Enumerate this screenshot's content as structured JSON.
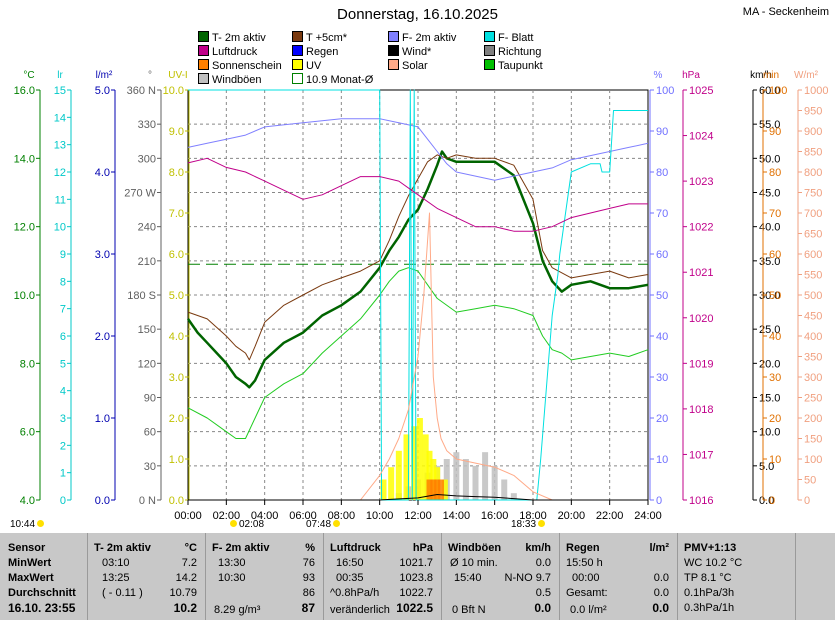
{
  "header": {
    "title": "Donnerstag, 16.10.2025",
    "location": "MA - Seckenheim"
  },
  "legend": [
    {
      "label": "T- 2m aktiv",
      "color": "#006400"
    },
    {
      "label": "T +5cm*",
      "color": "#7a3a10"
    },
    {
      "label": "F- 2m aktiv",
      "color": "#8080ff"
    },
    {
      "label": "F- Blatt",
      "color": "#00e0e0"
    },
    {
      "label": "Luftdruck",
      "color": "#c0008a"
    },
    {
      "label": "Regen",
      "color": "#0000ff"
    },
    {
      "label": "Wind*",
      "color": "#000000"
    },
    {
      "label": "Richtung",
      "color": "#808080"
    },
    {
      "label": "Sonnenschein",
      "color": "#ff8000"
    },
    {
      "label": "UV",
      "color": "#ffff00"
    },
    {
      "label": "Solar",
      "color": "#ffaa88"
    },
    {
      "label": "Taupunkt",
      "color": "#00c000"
    },
    {
      "label": "Windböen",
      "color": "#c0c0c0"
    },
    {
      "label": "10.9 Monat-Ø",
      "color": "#ffffff"
    }
  ],
  "sun": {
    "sunrise_text": "10:44",
    "sunset_text": "18:33",
    "events": [
      "02:08",
      "07:48"
    ]
  },
  "chart_data": {
    "type": "line",
    "x_unit": "hours",
    "x_ticks": [
      "00:00",
      "02:00",
      "04:00",
      "06:00",
      "08:00",
      "10:00",
      "12:00",
      "14:00",
      "16:00",
      "18:00",
      "20:00",
      "22:00",
      "24:00"
    ],
    "xlim": [
      0,
      24
    ],
    "axes": [
      {
        "unit": "°C",
        "color": "#008000",
        "ylim": [
          4,
          16
        ],
        "ticks": [
          "4.0",
          "6.0",
          "8.0",
          "10.0",
          "12.0",
          "14.0",
          "16.0"
        ]
      },
      {
        "unit": "lr",
        "color": "#00c8c8",
        "ylim": [
          0,
          15
        ],
        "ticks": [
          "0",
          "1",
          "2",
          "3",
          "4",
          "5",
          "6",
          "7",
          "8",
          "9",
          "10",
          "11",
          "12",
          "13",
          "14",
          "15"
        ]
      },
      {
        "unit": "l/m²",
        "color": "#0000b0",
        "ylim": [
          0,
          5
        ],
        "ticks": [
          "0.0",
          "1.0",
          "2.0",
          "3.0",
          "4.0",
          "5.0"
        ]
      },
      {
        "unit": "°",
        "color": "#606060",
        "ylim": [
          0,
          360
        ],
        "ticks": [
          "0 N",
          "30",
          "60",
          "90",
          "120",
          "150",
          "180 S",
          "210",
          "240",
          "270 W",
          "300",
          "330",
          "360 N"
        ]
      },
      {
        "unit": "UV-I",
        "color": "#c0c000",
        "ylim": [
          0,
          10
        ],
        "ticks": [
          "0.0",
          "1.0",
          "2.0",
          "3.0",
          "4.0",
          "5.0",
          "6.0",
          "7.0",
          "8.0",
          "9.0",
          "10.0"
        ]
      },
      {
        "unit": "%",
        "color": "#7070ff",
        "ylim": [
          0,
          100
        ],
        "ticks": [
          "0",
          "10",
          "20",
          "30",
          "40",
          "50",
          "60",
          "70",
          "80",
          "90",
          "100"
        ]
      },
      {
        "unit": "hPa",
        "color": "#c0008a",
        "ylim": [
          1016,
          1025
        ],
        "ticks": [
          "1016",
          "1017",
          "1018",
          "1019",
          "1020",
          "1021",
          "1022",
          "1023",
          "1024",
          "1025"
        ]
      },
      {
        "unit": "km/h",
        "color": "#000000",
        "ylim": [
          0,
          60
        ],
        "ticks": [
          "0.0",
          "5.0",
          "10.0",
          "15.0",
          "20.0",
          "25.0",
          "30.0",
          "35.0",
          "40.0",
          "45.0",
          "50.0",
          "55.0",
          "60.0"
        ]
      },
      {
        "unit": "min",
        "color": "#e07000",
        "ylim": [
          0,
          100
        ],
        "ticks": [
          "0",
          "10",
          "20",
          "30",
          "40",
          "50",
          "60",
          "70",
          "80",
          "90",
          "100"
        ]
      },
      {
        "unit": "W/m²",
        "color": "#f0a080",
        "ylim": [
          0,
          1000
        ],
        "ticks": [
          "0",
          "50",
          "100",
          "150",
          "200",
          "250",
          "300",
          "350",
          "400",
          "450",
          "500",
          "550",
          "600",
          "650",
          "700",
          "750",
          "800",
          "850",
          "900",
          "950",
          "1000"
        ]
      }
    ],
    "series": [
      {
        "name": "T- 2m aktiv",
        "axis": "°C",
        "color": "#006400",
        "width": 2.5,
        "x": [
          0,
          0.5,
          1,
          1.5,
          2,
          2.5,
          3,
          3.2,
          3.5,
          4,
          5,
          6,
          7,
          8,
          9,
          10,
          10.5,
          11,
          11.5,
          12,
          12.5,
          13,
          13.25,
          13.5,
          14,
          15,
          16,
          17,
          18,
          18.5,
          19,
          19.5,
          20,
          21,
          22,
          23,
          24
        ],
        "y": [
          9.3,
          8.9,
          8.6,
          8.3,
          8.0,
          7.6,
          7.4,
          7.3,
          7.5,
          8.1,
          8.6,
          8.9,
          9.4,
          9.7,
          10.1,
          10.8,
          11.3,
          11.7,
          12.2,
          12.5,
          13.1,
          13.8,
          14.2,
          14.0,
          13.9,
          13.9,
          13.9,
          13.5,
          12.1,
          11.0,
          10.4,
          10.1,
          10.3,
          10.4,
          10.2,
          10.2,
          10.3
        ]
      },
      {
        "name": "T +5cm*",
        "axis": "°C",
        "color": "#7a3a10",
        "width": 1,
        "x": [
          0,
          1,
          2,
          2.5,
          3,
          3.2,
          3.5,
          4,
          5,
          6,
          7,
          8,
          9,
          10,
          10.5,
          11,
          11.5,
          12,
          12.5,
          13,
          13.5,
          14,
          15,
          16,
          17,
          18,
          18.5,
          19,
          20,
          21,
          22,
          23,
          24
        ],
        "y": [
          9.5,
          9.3,
          8.8,
          8.5,
          8.3,
          8.1,
          8.5,
          9.2,
          9.7,
          10.0,
          10.3,
          10.5,
          10.7,
          11.0,
          11.6,
          12.3,
          12.9,
          13.4,
          13.9,
          14.1,
          14.0,
          14.1,
          14.0,
          14.0,
          13.8,
          12.8,
          11.3,
          10.8,
          10.5,
          10.6,
          10.7,
          10.5,
          10.6
        ]
      },
      {
        "name": "Taupunkt",
        "axis": "°C",
        "color": "#22cc22",
        "width": 1,
        "x": [
          0,
          1,
          2,
          2.5,
          3,
          3.5,
          4,
          5,
          6,
          7,
          8,
          9,
          10,
          10.5,
          11,
          11.5,
          12,
          12.5,
          13,
          14,
          15,
          16,
          17,
          18,
          18.5,
          19,
          19.5,
          20,
          21,
          22,
          23,
          24
        ],
        "y": [
          6.7,
          6.4,
          6.0,
          5.8,
          5.8,
          6.4,
          7.0,
          7.4,
          7.7,
          8.3,
          8.8,
          9.3,
          10.0,
          10.4,
          10.7,
          10.8,
          10.7,
          10.3,
          9.9,
          9.5,
          9.6,
          9.7,
          9.6,
          9.4,
          8.8,
          8.4,
          8.3,
          8.1,
          8.2,
          8.3,
          8.2,
          8.4
        ]
      },
      {
        "name": "F- 2m aktiv",
        "axis": "%",
        "color": "#8080ff",
        "width": 1,
        "x": [
          0,
          1,
          2,
          3,
          4,
          6,
          8,
          10,
          11,
          12,
          12.5,
          13,
          13.5,
          14,
          15,
          16,
          17,
          18,
          19,
          20,
          21,
          22,
          23,
          24
        ],
        "y": [
          86,
          87,
          88,
          89,
          91,
          92,
          93,
          93,
          92,
          91,
          88,
          85,
          82,
          80,
          79,
          78,
          79,
          80,
          81,
          83,
          84,
          85,
          86,
          87
        ]
      },
      {
        "name": "F- Blatt",
        "axis": "%",
        "color": "#00e0e0",
        "width": 1,
        "x": [
          0,
          10,
          10.1,
          10.4,
          11.5,
          11.6,
          11.7,
          11.8,
          11.9,
          12.0,
          18.2,
          18.4,
          19,
          19.3,
          19.4,
          20,
          21,
          21.5,
          21.6,
          22,
          22.2,
          22.3,
          24
        ],
        "y": [
          100,
          100,
          0,
          0,
          0,
          100,
          0,
          100,
          0,
          0,
          0,
          10,
          45,
          55,
          60,
          80,
          82,
          82,
          80,
          80,
          95,
          95,
          95
        ]
      },
      {
        "name": "Luftdruck",
        "axis": "hPa",
        "color": "#c0008a",
        "width": 1,
        "x": [
          0,
          1,
          2,
          3,
          4,
          5,
          6,
          7,
          8,
          9,
          10,
          11,
          12,
          13,
          14,
          15,
          16,
          17,
          18,
          19,
          20,
          21,
          22,
          23,
          24
        ],
        "y": [
          1023.4,
          1023.5,
          1023.3,
          1023.2,
          1023.0,
          1022.8,
          1022.6,
          1022.7,
          1022.9,
          1023.1,
          1023.1,
          1023.0,
          1022.7,
          1022.4,
          1022.2,
          1022.0,
          1022.0,
          1021.9,
          1021.9,
          1022.0,
          1022.2,
          1022.3,
          1022.4,
          1022.5,
          1022.5
        ]
      },
      {
        "name": "Solar",
        "axis": "W/m²",
        "color": "#ffaa88",
        "width": 1,
        "x": [
          0,
          9,
          10,
          10.5,
          11,
          11.5,
          12,
          12.3,
          12.6,
          12.8,
          13,
          13.2,
          13.5,
          14,
          15,
          16,
          17,
          18,
          19,
          24
        ],
        "y": [
          0,
          0,
          60,
          100,
          150,
          220,
          350,
          500,
          700,
          300,
          200,
          150,
          120,
          100,
          90,
          80,
          60,
          20,
          0,
          0
        ]
      },
      {
        "name": "Wind*",
        "axis": "km/h",
        "color": "#000000",
        "width": 1,
        "x": [
          0,
          10,
          12,
          13,
          14,
          15,
          16,
          17,
          18,
          24
        ],
        "y": [
          0,
          0,
          0.3,
          0.8,
          0.6,
          0.5,
          0.4,
          0.2,
          0,
          0
        ]
      }
    ],
    "bars": [
      {
        "name": "Windböen",
        "axis": "km/h",
        "color": "#c0c0c0",
        "x": [
          11,
          11.5,
          12,
          12.5,
          13,
          13.5,
          14,
          14.5,
          15,
          15.5,
          16,
          16.5,
          17
        ],
        "y": [
          1,
          2,
          3,
          4,
          5,
          6,
          7,
          6,
          5,
          7,
          5,
          3,
          1
        ]
      },
      {
        "name": "UV",
        "axis": "UV-I",
        "color": "#ffff00",
        "x": [
          10.2,
          10.6,
          11,
          11.4,
          11.8,
          12.1,
          12.4,
          12.6,
          12.8,
          13,
          13.4
        ],
        "y": [
          0.5,
          0.8,
          1.2,
          1.6,
          1.8,
          2.0,
          1.6,
          1.2,
          1.0,
          0.8,
          0.5
        ]
      },
      {
        "name": "Sonnenschein",
        "axis": "min",
        "color": "#ff8000",
        "x": [
          12.6,
          12.8,
          13,
          13.2
        ],
        "y": [
          5,
          5,
          5,
          5
        ]
      }
    ],
    "reference_line": {
      "name": "10.9 Monat-Ø",
      "axis": "°C",
      "value": 10.9,
      "color": "#008000"
    }
  },
  "table": {
    "columns": [
      {
        "header": "Sensor",
        "rows": [
          "MinWert",
          "MaxWert",
          "Durchschnitt"
        ],
        "footer": "16.10. 23:55"
      },
      {
        "header": "T- 2m aktiv",
        "unit": "°C",
        "rows": [
          [
            "03:10",
            "7.2"
          ],
          [
            "13:25",
            "14.2"
          ],
          [
            "( - 0.11 )",
            "10.79"
          ]
        ],
        "footer": "10.2"
      },
      {
        "header": "F- 2m aktiv",
        "unit": "%",
        "rows": [
          [
            "13:30",
            "76"
          ],
          [
            "10:30",
            "93"
          ],
          [
            "",
            "86"
          ]
        ],
        "footer_left": "8.29 g/m³",
        "footer": "87"
      },
      {
        "header": "Luftdruck",
        "unit": "hPa",
        "rows": [
          [
            "16:50",
            "1021.7"
          ],
          [
            "00:35",
            "1023.8"
          ],
          [
            "^0.8hPa/h",
            "1022.7"
          ]
        ],
        "footer_left": "veränderlich",
        "footer": "1022.5"
      },
      {
        "header": "Windböen",
        "unit": "km/h",
        "rows": [
          [
            "Ø 10 min.",
            "0.0"
          ],
          [
            "15:40",
            "N-NO 9.7"
          ],
          [
            "",
            "0.5"
          ]
        ],
        "footer_left": "0 Bft N",
        "footer": "0.0"
      },
      {
        "header": "Regen",
        "unit": "l/m²",
        "rows": [
          [
            "15:50 h",
            ""
          ],
          [
            "00:00",
            "0.0"
          ],
          [
            "Gesamt:",
            "0.0"
          ]
        ],
        "footer_left": "0.0 l/m²",
        "footer": "0.0"
      },
      {
        "header": "PMV+1:13",
        "rows": [
          "WC 10.2 °C",
          "TP 8.1 °C",
          "0.1hPa/3h"
        ],
        "footer": "0.3hPa/1h"
      }
    ]
  }
}
